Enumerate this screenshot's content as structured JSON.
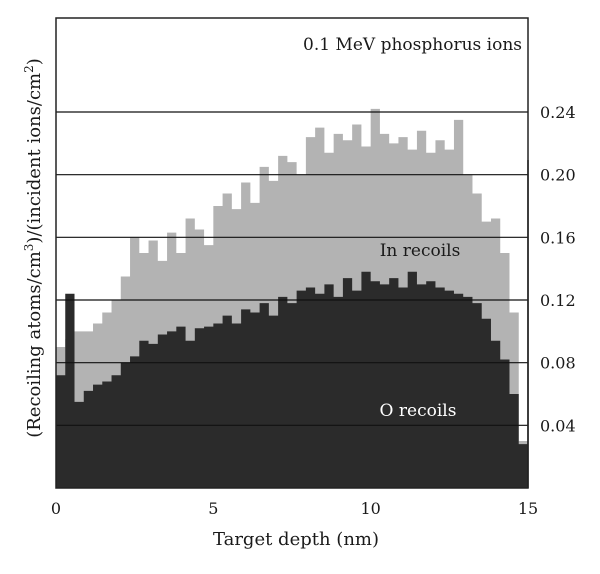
{
  "chart_data": {
    "type": "area",
    "title": "0.1 MeV phosphorus ions",
    "xlabel": "Target depth (nm)",
    "ylabel_parts": [
      "(Recoiling atoms/cm",
      "3",
      ")/(incident ions/cm",
      "2",
      ")"
    ],
    "xlim": [
      0,
      15
    ],
    "ylim": [
      0,
      0.3
    ],
    "x_ticks": [
      "0",
      "5",
      "10",
      "15"
    ],
    "y_ticks": [
      "0.04",
      "0.08",
      "0.12",
      "0.16",
      "0.20",
      "0.24"
    ],
    "y_tick_values": [
      0.04,
      0.08,
      0.12,
      0.16,
      0.2,
      0.24
    ],
    "grid": "horizontal",
    "series": [
      {
        "name": "In recoils",
        "color": "#b3b3b3",
        "x": [
          0.0,
          0.3,
          0.6,
          0.9,
          1.2,
          1.5,
          1.8,
          2.1,
          2.4,
          2.7,
          3.0,
          3.3,
          3.6,
          3.9,
          4.2,
          4.5,
          4.8,
          5.1,
          5.4,
          5.7,
          6.0,
          6.3,
          6.6,
          6.9,
          7.2,
          7.5,
          7.8,
          8.1,
          8.4,
          8.7,
          9.0,
          9.3,
          9.6,
          9.9,
          10.2,
          10.5,
          10.8,
          11.1,
          11.4,
          11.7,
          12.0,
          12.3,
          12.6,
          12.9,
          13.2,
          13.5,
          13.8,
          14.1,
          14.4,
          14.7,
          15.0
        ],
        "values": [
          0.09,
          0.095,
          0.1,
          0.1,
          0.105,
          0.112,
          0.12,
          0.135,
          0.16,
          0.15,
          0.158,
          0.145,
          0.163,
          0.15,
          0.172,
          0.165,
          0.155,
          0.18,
          0.188,
          0.178,
          0.195,
          0.182,
          0.205,
          0.196,
          0.212,
          0.208,
          0.2,
          0.224,
          0.23,
          0.214,
          0.226,
          0.222,
          0.232,
          0.218,
          0.242,
          0.226,
          0.22,
          0.224,
          0.216,
          0.228,
          0.214,
          0.222,
          0.216,
          0.235,
          0.2,
          0.188,
          0.17,
          0.172,
          0.15,
          0.112,
          0.03
        ]
      },
      {
        "name": "O recoils",
        "color": "#2b2b2b",
        "x": [
          0.0,
          0.3,
          0.6,
          0.9,
          1.2,
          1.5,
          1.8,
          2.1,
          2.4,
          2.7,
          3.0,
          3.3,
          3.6,
          3.9,
          4.2,
          4.5,
          4.8,
          5.1,
          5.4,
          5.7,
          6.0,
          6.3,
          6.6,
          6.9,
          7.2,
          7.5,
          7.8,
          8.1,
          8.4,
          8.7,
          9.0,
          9.3,
          9.6,
          9.9,
          10.2,
          10.5,
          10.8,
          11.1,
          11.4,
          11.7,
          12.0,
          12.3,
          12.6,
          12.9,
          13.2,
          13.5,
          13.8,
          14.1,
          14.4,
          14.7,
          15.0
        ],
        "values": [
          0.072,
          0.124,
          0.055,
          0.062,
          0.066,
          0.068,
          0.072,
          0.08,
          0.084,
          0.094,
          0.092,
          0.098,
          0.1,
          0.103,
          0.094,
          0.102,
          0.103,
          0.105,
          0.11,
          0.105,
          0.114,
          0.112,
          0.118,
          0.11,
          0.122,
          0.118,
          0.126,
          0.128,
          0.124,
          0.13,
          0.122,
          0.134,
          0.126,
          0.138,
          0.132,
          0.13,
          0.134,
          0.128,
          0.138,
          0.13,
          0.132,
          0.128,
          0.126,
          0.124,
          0.122,
          0.118,
          0.108,
          0.094,
          0.082,
          0.06,
          0.028
        ]
      }
    ]
  }
}
